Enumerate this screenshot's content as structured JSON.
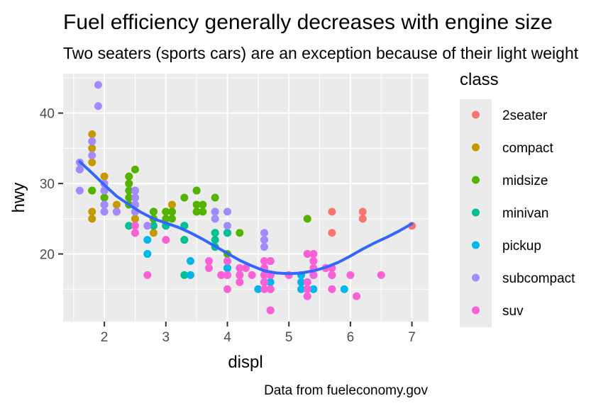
{
  "chart_data": {
    "type": "scatter",
    "title": "Fuel efficiency generally decreases with engine size",
    "subtitle": "Two seaters (sports cars) are an exception because of their light weight",
    "caption": "Data from fueleconomy.gov",
    "xlabel": "displ",
    "ylabel": "hwy",
    "xlim": [
      1.33,
      7.27
    ],
    "ylim": [
      10.4,
      45.6
    ],
    "x_ticks": [
      2,
      3,
      4,
      5,
      6,
      7
    ],
    "y_ticks": [
      20,
      30,
      40
    ],
    "grid": true,
    "legend": {
      "title": "class",
      "position": "right",
      "entries": [
        "2seater",
        "compact",
        "midsize",
        "minivan",
        "pickup",
        "subcompact",
        "suv"
      ]
    },
    "colors": {
      "2seater": "#F8766D",
      "compact": "#C49A00",
      "midsize": "#53B400",
      "minivan": "#00C094",
      "pickup": "#00B6EB",
      "subcompact": "#A58AFF",
      "suv": "#FB61D7",
      "smooth": "#3366FF",
      "panel": "#EBEBEB"
    },
    "series": [
      {
        "name": "2seater",
        "points": [
          [
            5.7,
            26
          ],
          [
            5.7,
            23
          ],
          [
            6.2,
            26
          ],
          [
            6.2,
            25
          ],
          [
            7.0,
            24
          ]
        ]
      },
      {
        "name": "compact",
        "points": [
          [
            1.8,
            29
          ],
          [
            1.8,
            29
          ],
          [
            2.0,
            31
          ],
          [
            2.0,
            30
          ],
          [
            2.8,
            26
          ],
          [
            2.8,
            26
          ],
          [
            3.1,
            27
          ],
          [
            1.8,
            26
          ],
          [
            1.8,
            25
          ],
          [
            2.0,
            28
          ],
          [
            2.8,
            25
          ],
          [
            2.2,
            26
          ],
          [
            2.2,
            27
          ],
          [
            2.4,
            30
          ],
          [
            2.4,
            31
          ],
          [
            3.0,
            26
          ],
          [
            2.5,
            25
          ],
          [
            2.5,
            27
          ],
          [
            2.5,
            26
          ],
          [
            2.5,
            25
          ],
          [
            2.8,
            24
          ],
          [
            2.8,
            23
          ],
          [
            1.8,
            33
          ],
          [
            1.8,
            35
          ],
          [
            1.8,
            37
          ],
          [
            2.0,
            29
          ],
          [
            2.0,
            31
          ],
          [
            2.0,
            29
          ]
        ]
      },
      {
        "name": "midsize",
        "points": [
          [
            2.8,
            26
          ],
          [
            3.1,
            25
          ],
          [
            4.2,
            23
          ],
          [
            2.4,
            27
          ],
          [
            2.4,
            30
          ],
          [
            3.1,
            26
          ],
          [
            3.5,
            29
          ],
          [
            3.6,
            26
          ],
          [
            2.4,
            24
          ],
          [
            3.0,
            24
          ],
          [
            3.3,
            22
          ],
          [
            3.3,
            28
          ],
          [
            2.4,
            29
          ],
          [
            2.4,
            31
          ],
          [
            2.5,
            32
          ],
          [
            2.5,
            26
          ],
          [
            3.5,
            26
          ],
          [
            3.5,
            27
          ],
          [
            3.8,
            28
          ],
          [
            3.8,
            26
          ],
          [
            3.8,
            23
          ],
          [
            5.3,
            25
          ],
          [
            2.5,
            29
          ],
          [
            2.5,
            28
          ],
          [
            2.5,
            29
          ],
          [
            3.0,
            26
          ],
          [
            3.0,
            25
          ],
          [
            3.5,
            26
          ],
          [
            3.5,
            29
          ],
          [
            3.6,
            27
          ],
          [
            1.8,
            29
          ],
          [
            2.0,
            28
          ],
          [
            2.0,
            27
          ],
          [
            2.8,
            25
          ],
          [
            2.8,
            25
          ],
          [
            3.1,
            26
          ],
          [
            4.0,
            23
          ],
          [
            4.0,
            20
          ],
          [
            2.2,
            26
          ],
          [
            2.4,
            28
          ]
        ]
      },
      {
        "name": "minivan",
        "points": [
          [
            2.4,
            24
          ],
          [
            3.0,
            24
          ],
          [
            3.3,
            22
          ],
          [
            3.3,
            24
          ],
          [
            3.3,
            24
          ],
          [
            3.3,
            17
          ],
          [
            3.8,
            22
          ],
          [
            3.8,
            21
          ],
          [
            3.8,
            23
          ],
          [
            4.0,
            23
          ],
          [
            2.8,
            24
          ]
        ]
      },
      {
        "name": "pickup",
        "points": [
          [
            2.7,
            20
          ],
          [
            2.7,
            20
          ],
          [
            2.7,
            22
          ],
          [
            3.4,
            17
          ],
          [
            3.4,
            19
          ],
          [
            4.0,
            18
          ],
          [
            4.0,
            17
          ],
          [
            4.7,
            17
          ],
          [
            4.7,
            16
          ],
          [
            4.7,
            12
          ],
          [
            5.2,
            15
          ],
          [
            5.2,
            16
          ],
          [
            5.7,
            17
          ],
          [
            5.9,
            15
          ],
          [
            4.7,
            17
          ],
          [
            4.2,
            17
          ],
          [
            4.6,
            16
          ],
          [
            4.6,
            17
          ],
          [
            5.4,
            15
          ],
          [
            4.7,
            17
          ],
          [
            5.3,
            16
          ],
          [
            4.0,
            19
          ],
          [
            4.0,
            18
          ],
          [
            4.6,
            16
          ],
          [
            5.2,
            17
          ],
          [
            5.4,
            17
          ],
          [
            5.7,
            17
          ],
          [
            4.7,
            15
          ],
          [
            4.7,
            17
          ],
          [
            5.3,
            15
          ],
          [
            4.5,
            15
          ]
        ]
      },
      {
        "name": "subcompact",
        "points": [
          [
            3.8,
            26
          ],
          [
            3.8,
            25
          ],
          [
            4.0,
            26
          ],
          [
            4.0,
            24
          ],
          [
            4.6,
            21
          ],
          [
            4.6,
            22
          ],
          [
            4.6,
            23
          ],
          [
            4.6,
            22
          ],
          [
            5.4,
            20
          ],
          [
            1.6,
            33
          ],
          [
            1.6,
            32
          ],
          [
            1.6,
            32
          ],
          [
            1.6,
            29
          ],
          [
            1.6,
            32
          ],
          [
            1.8,
            34
          ],
          [
            1.8,
            36
          ],
          [
            1.8,
            36
          ],
          [
            2.0,
            29
          ],
          [
            2.0,
            26
          ],
          [
            2.0,
            27
          ],
          [
            2.0,
            30
          ],
          [
            2.5,
            26
          ],
          [
            2.5,
            28
          ],
          [
            2.5,
            29
          ],
          [
            2.5,
            27
          ],
          [
            2.2,
            26
          ],
          [
            2.5,
            26
          ],
          [
            2.5,
            27
          ],
          [
            2.7,
            24
          ],
          [
            1.9,
            44
          ],
          [
            1.9,
            41
          ],
          [
            2.0,
            29
          ],
          [
            2.0,
            26
          ]
        ]
      },
      {
        "name": "suv",
        "points": [
          [
            5.3,
            20
          ],
          [
            5.3,
            15
          ],
          [
            5.3,
            20
          ],
          [
            5.7,
            17
          ],
          [
            6.0,
            17
          ],
          [
            5.7,
            15
          ],
          [
            5.7,
            18
          ],
          [
            6.5,
            17
          ],
          [
            4.7,
            19
          ],
          [
            4.7,
            19
          ],
          [
            4.7,
            15
          ],
          [
            4.7,
            17
          ],
          [
            4.7,
            17
          ],
          [
            4.7,
            19
          ],
          [
            4.7,
            15
          ],
          [
            4.0,
            17
          ],
          [
            4.0,
            17
          ],
          [
            4.0,
            15
          ],
          [
            4.6,
            17
          ],
          [
            5.0,
            17
          ],
          [
            4.2,
            17
          ],
          [
            4.2,
            16
          ],
          [
            4.6,
            18
          ],
          [
            4.6,
            19
          ],
          [
            4.6,
            18
          ],
          [
            5.4,
            17
          ],
          [
            5.4,
            18
          ],
          [
            5.4,
            19
          ],
          [
            5.3,
            14
          ],
          [
            5.3,
            16
          ],
          [
            5.6,
            18
          ],
          [
            5.6,
            18
          ],
          [
            4.7,
            15
          ],
          [
            4.7,
            12
          ],
          [
            5.3,
            14
          ],
          [
            6.1,
            14
          ],
          [
            3.7,
            19
          ],
          [
            3.7,
            18
          ],
          [
            3.9,
            17
          ],
          [
            4.3,
            18
          ],
          [
            4.4,
            17
          ],
          [
            3.9,
            17
          ],
          [
            2.7,
            17
          ],
          [
            3.0,
            22
          ],
          [
            4.0,
            19
          ],
          [
            4.0,
            19
          ],
          [
            4.6,
            16
          ],
          [
            5.0,
            17
          ],
          [
            4.2,
            18
          ],
          [
            2.5,
            23
          ],
          [
            2.5,
            24
          ],
          [
            2.5,
            23
          ],
          [
            4.6,
            15
          ],
          [
            4.6,
            17
          ],
          [
            5.4,
            19
          ],
          [
            5.4,
            20
          ]
        ]
      }
    ],
    "smooth": {
      "name": "loess",
      "points": [
        [
          1.6,
          33.1
        ],
        [
          1.8,
          31.5
        ],
        [
          2.0,
          29.8
        ],
        [
          2.2,
          28.2
        ],
        [
          2.4,
          27.0
        ],
        [
          2.6,
          25.9
        ],
        [
          2.8,
          25.0
        ],
        [
          3.0,
          24.4
        ],
        [
          3.2,
          23.8
        ],
        [
          3.4,
          23.0
        ],
        [
          3.6,
          22.1
        ],
        [
          3.8,
          21.1
        ],
        [
          4.0,
          20.1
        ],
        [
          4.2,
          19.1
        ],
        [
          4.4,
          18.3
        ],
        [
          4.6,
          17.6
        ],
        [
          4.8,
          17.3
        ],
        [
          5.0,
          17.2
        ],
        [
          5.2,
          17.3
        ],
        [
          5.4,
          17.6
        ],
        [
          5.6,
          18.1
        ],
        [
          5.8,
          18.8
        ],
        [
          6.0,
          19.7
        ],
        [
          6.2,
          20.7
        ],
        [
          6.4,
          21.6
        ],
        [
          6.6,
          22.4
        ],
        [
          6.8,
          23.3
        ],
        [
          7.0,
          24.3
        ]
      ]
    }
  }
}
